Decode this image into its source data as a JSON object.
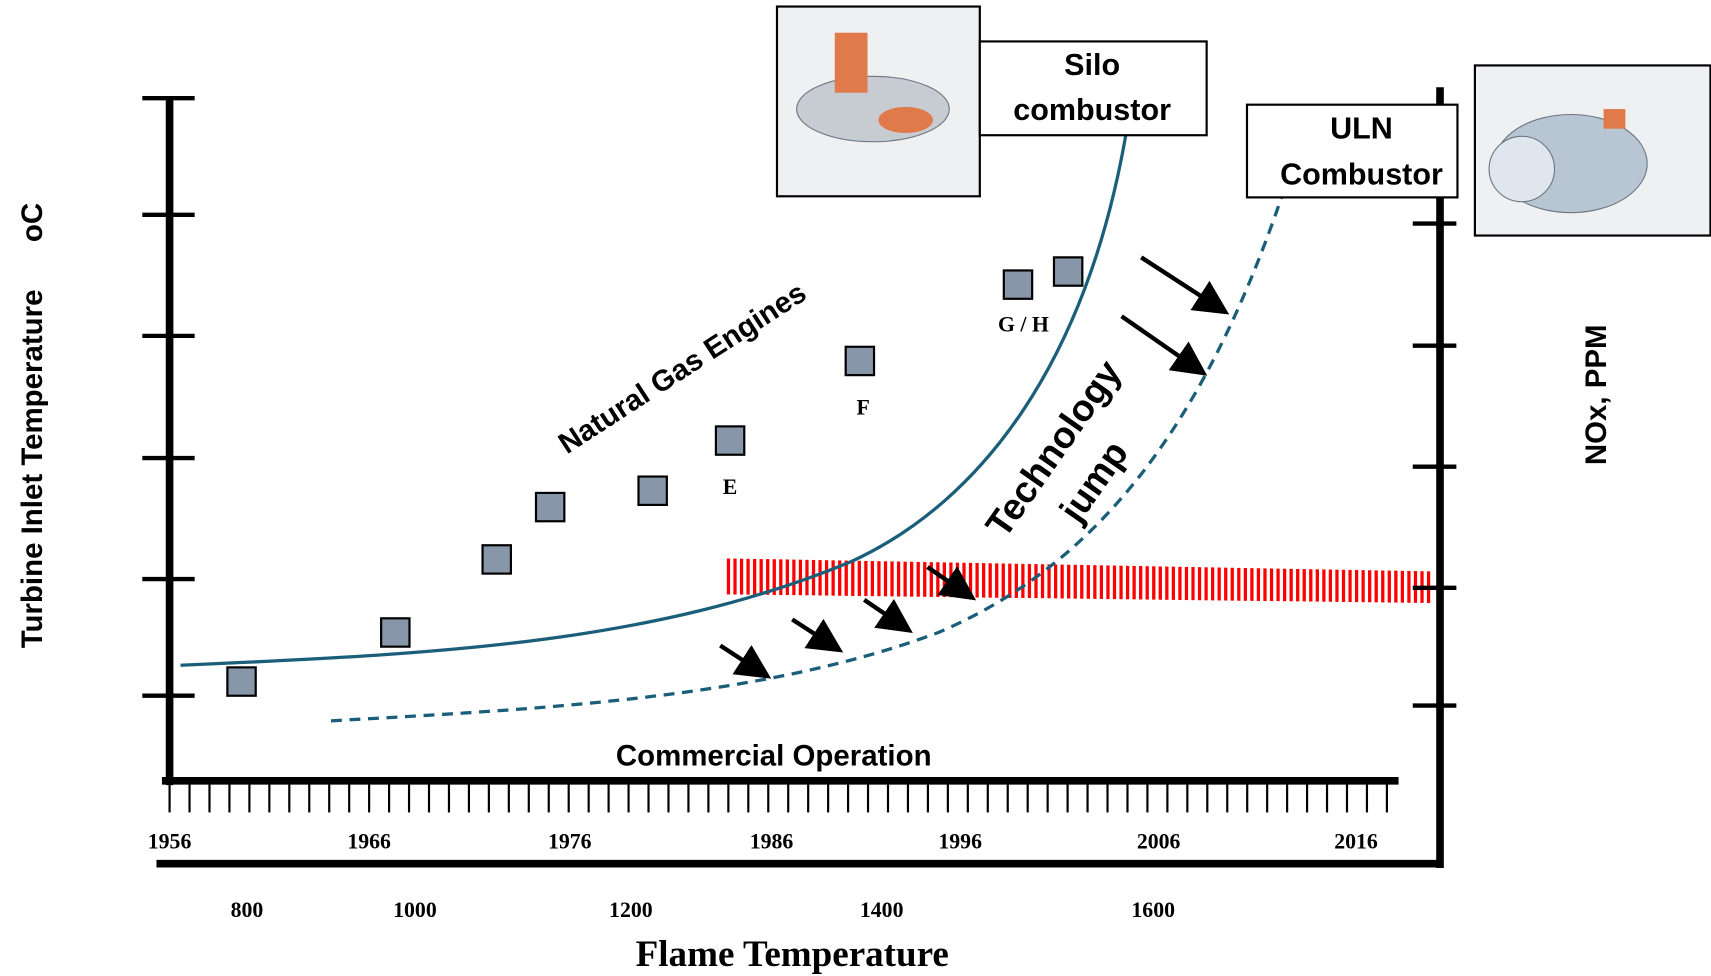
{
  "axes": {
    "y_left_label": "Turbine Inlet Temperature",
    "y_left_unit": "oC",
    "y_right_label": "NOx, PPM",
    "x_label": "Flame Temperature",
    "x_top_label": "Commercial Operation"
  },
  "year_ticks": [
    "1956",
    "1966",
    "1976",
    "1986",
    "1996",
    "2006",
    "2016"
  ],
  "flame_ticks": [
    "800",
    "1000",
    "1200",
    "1400",
    "1600"
  ],
  "annotations": {
    "natural_gas": "Natural Gas Engines",
    "technology": "Technology",
    "jump": "jump"
  },
  "point_labels": [
    "E",
    "F",
    "G / H"
  ],
  "callouts": [
    {
      "lines": [
        "Silo",
        "combustor"
      ]
    },
    {
      "lines": [
        "ULN",
        "Combustor"
      ]
    }
  ]
}
